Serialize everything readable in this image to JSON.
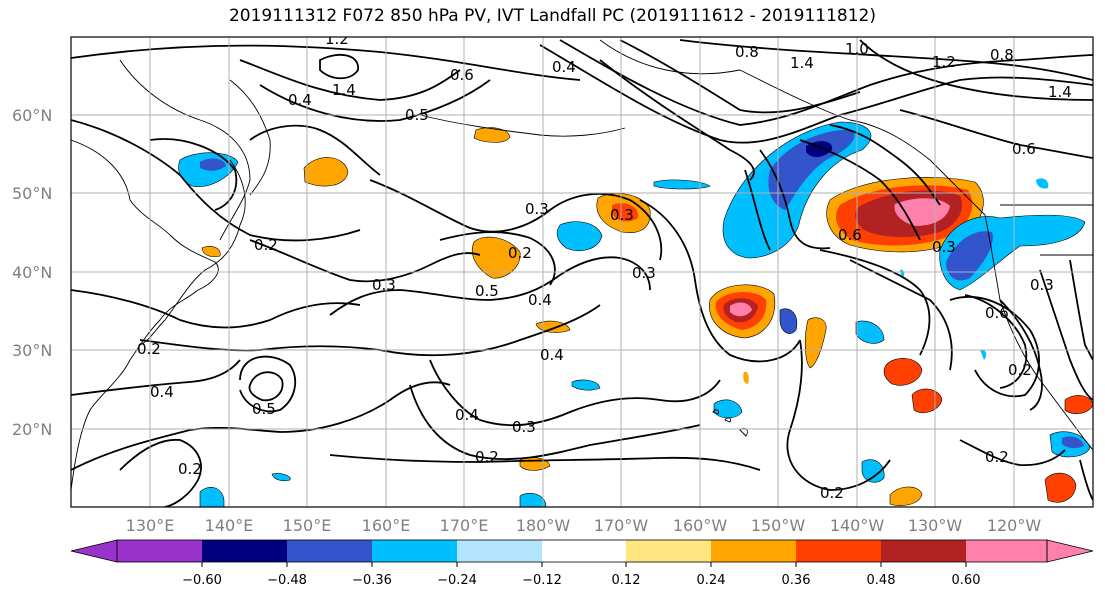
{
  "title": "2019111312 F072 850 hPa PV, IVT Landfall PC (2019111612 - 2019111812)",
  "lat_labels": [
    "60°N",
    "50°N",
    "40°N",
    "30°N",
    "20°N"
  ],
  "lon_labels": [
    "130°E",
    "140°E",
    "150°E",
    "160°E",
    "170°E",
    "180°W",
    "170°W",
    "160°W",
    "150°W",
    "140°W",
    "130°W",
    "120°W"
  ],
  "contour_labels": [
    "1.2",
    "1.4",
    "0.6",
    "0.5",
    "0.4",
    "0.8",
    "1.0",
    "1.4",
    "1.2",
    "0.8",
    "1.4",
    "0.6",
    "0.4",
    "0.3",
    "0.2",
    "0.2",
    "0.5",
    "0.4",
    "0.3",
    "0.3",
    "0.4",
    "0.2",
    "0.3",
    "0.2",
    "0.4",
    "0.5",
    "0.3",
    "0.2",
    "0.2",
    "0.6",
    "0.3",
    "0.6",
    "0.3",
    "0.4",
    "0.2",
    "0.2"
  ],
  "colorbar": {
    "ticks": [
      "−0.60",
      "−0.48",
      "−0.36",
      "−0.24",
      "−0.12",
      "0.12",
      "0.24",
      "0.36",
      "0.48",
      "0.60"
    ],
    "colors": [
      "#9933cc",
      "#000080",
      "#3355cc",
      "#00bfff",
      "#b3e5ff",
      "#ffffff",
      "#ffe680",
      "#ffa500",
      "#ff4000",
      "#b22222",
      "#ff80aa"
    ]
  },
  "map_colors": {
    "grid": "#b0b0b0",
    "contour": "#000000",
    "coast": "#000000"
  }
}
